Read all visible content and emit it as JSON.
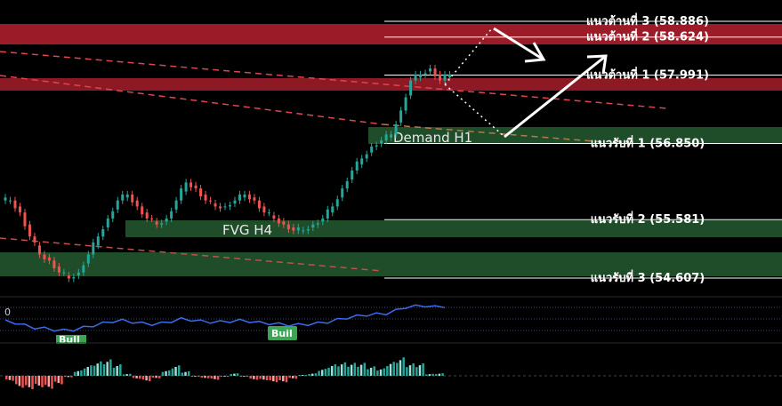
{
  "chart_data": {
    "type": "candlestick",
    "colors": {
      "background": "#000000",
      "resistance_zone": "#9b1c28",
      "support_zone": "#1f4d2a",
      "candle_up": "#26a69a",
      "candle_down": "#ef5350",
      "rsi_line": "#3b6cf0",
      "trend_line": "#e0454f",
      "level_line": "#ffffff",
      "arrow": "#ffffff"
    },
    "levels": [
      {
        "label": "แนวต้านที่ 3 (58.886)",
        "kind": "resistance",
        "price": 58.886
      },
      {
        "label": "แนวต้านที่ 2 (58.624)",
        "kind": "resistance",
        "price": 58.624
      },
      {
        "label": "แนวต้านที่ 1 (57.991)",
        "kind": "resistance",
        "price": 57.991
      },
      {
        "label": "แนวรับที่ 1 (56.850)",
        "kind": "support",
        "price": 56.85
      },
      {
        "label": "แนวรับที่ 2 (55.581)",
        "kind": "support",
        "price": 55.581
      },
      {
        "label": "แนวรับที่ 3 (54.607)",
        "kind": "support",
        "price": 54.607
      }
    ],
    "zones": [
      {
        "label": "Demand H1",
        "kind": "support"
      },
      {
        "label": "FVG H4",
        "kind": "support"
      }
    ],
    "indicator": {
      "zero_label": "0",
      "signals": [
        "Bull",
        "Buil"
      ]
    },
    "price_series": [
      55.9,
      55.7,
      55.3,
      55.0,
      54.9,
      54.7,
      54.6,
      54.7,
      55.0,
      55.3,
      55.6,
      55.9,
      56.0,
      55.8,
      55.6,
      55.5,
      55.6,
      55.9,
      56.2,
      56.1,
      55.9,
      55.8,
      55.8,
      55.9,
      56.0,
      55.9,
      55.7,
      55.6,
      55.5,
      55.4,
      55.4,
      55.5,
      55.6,
      55.8,
      56.1,
      56.4,
      56.6,
      56.8,
      56.9,
      57.0,
      57.4,
      57.9,
      58.0,
      58.1,
      57.9,
      58.0
    ]
  }
}
